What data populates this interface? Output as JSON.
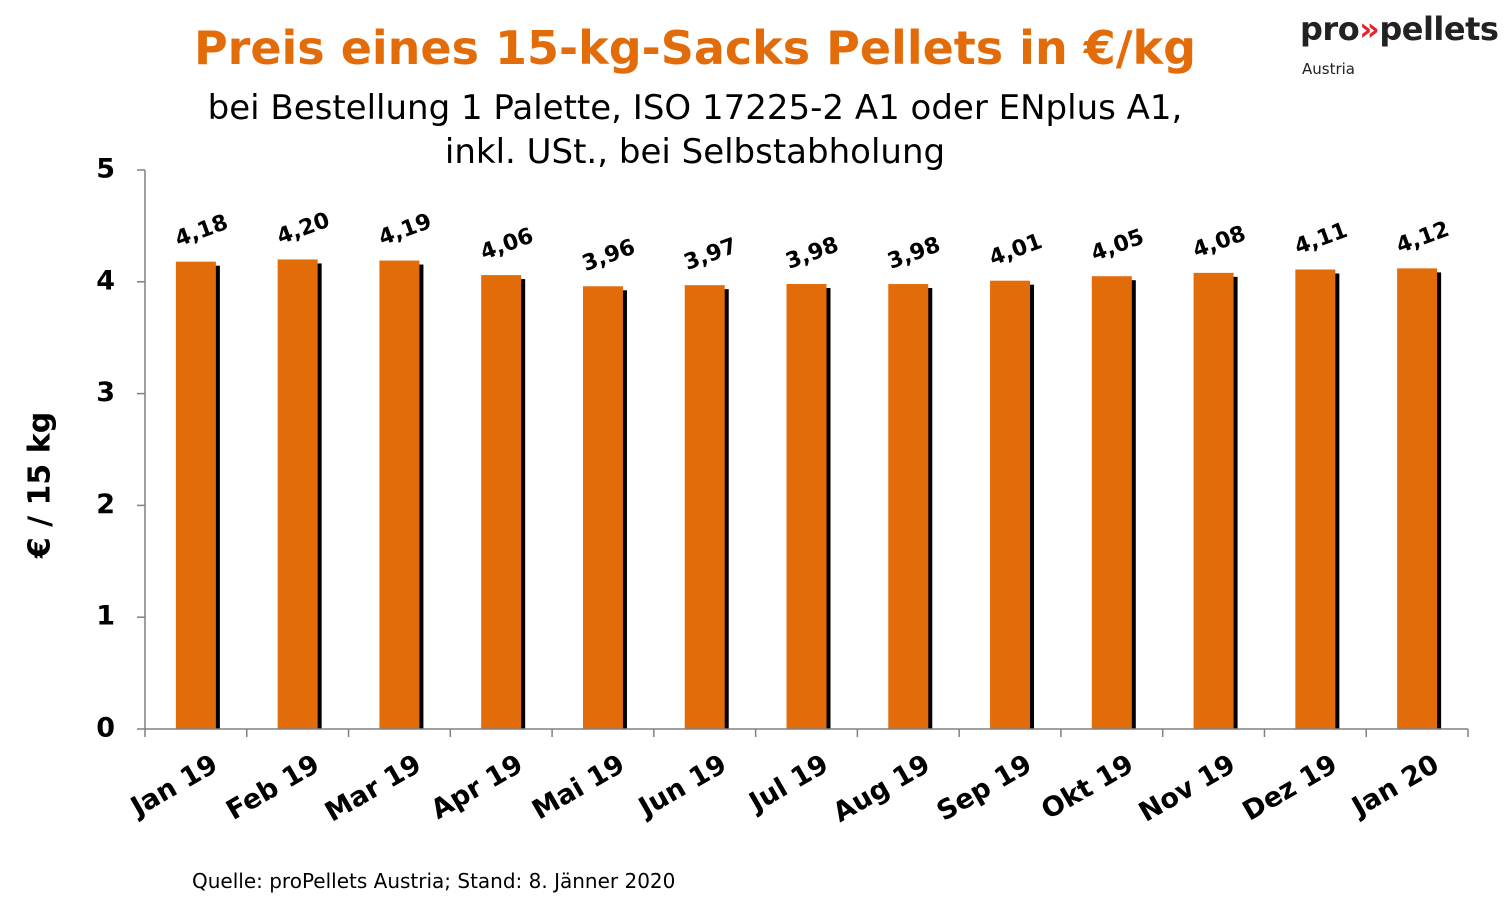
{
  "title": "Preis eines 15-kg-Sacks Pellets in €/kg",
  "subtitle_lines": [
    "bei Bestellung 1 Palette, ISO 17225-2 A1 oder ENplus A1,",
    "inkl. USt., bei Selbstabholung"
  ],
  "logo": {
    "prefix": "pro",
    "arrows": "»",
    "suffix": "pellets",
    "sub": "Austria"
  },
  "source": "Quelle: proPellets Austria; Stand: 8. Jänner 2020",
  "colors": {
    "bar": "#e36c0a",
    "shadow": "#000000",
    "title": "#e36c0a"
  },
  "chart_data": {
    "type": "bar",
    "title": "Preis eines 15-kg-Sacks Pellets in €/kg",
    "xlabel": "",
    "ylabel": "€ / 15 kg",
    "ylim": [
      0,
      5
    ],
    "yticks": [
      "0",
      "1",
      "2",
      "3",
      "4",
      "5"
    ],
    "grid": false,
    "categories": [
      "Jan 19",
      "Feb 19",
      "Mar 19",
      "Apr 19",
      "Mai 19",
      "Jun 19",
      "Jul 19",
      "Aug 19",
      "Sep 19",
      "Okt 19",
      "Nov 19",
      "Dez 19",
      "Jan 20"
    ],
    "values": [
      4.18,
      4.2,
      4.19,
      4.06,
      3.96,
      3.97,
      3.98,
      3.98,
      4.01,
      4.05,
      4.08,
      4.11,
      4.12
    ],
    "data_labels": [
      "4,18",
      "4,20",
      "4,19",
      "4,06",
      "3,96",
      "3,97",
      "3,98",
      "3,98",
      "4,01",
      "4,05",
      "4,08",
      "4,11",
      "4,12"
    ]
  }
}
